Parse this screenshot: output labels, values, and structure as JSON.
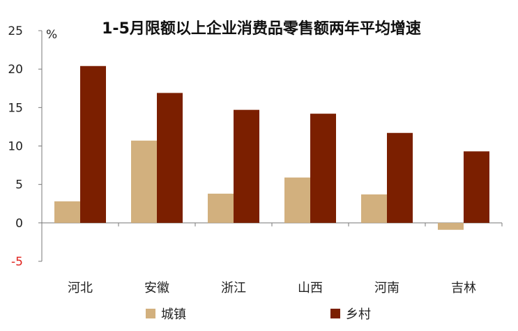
{
  "chart_data": {
    "type": "bar",
    "title": "1-5月限额以上企业消费品零售额两年平均增速",
    "ylabel": "%",
    "ylim": [
      -5,
      25
    ],
    "yticks": [
      25,
      20,
      15,
      10,
      5,
      0,
      -5
    ],
    "grid": false,
    "legend_position": "bottom",
    "categories": [
      "河北",
      "安徽",
      "浙江",
      "山西",
      "河南",
      "吉林"
    ],
    "series": [
      {
        "name": "城镇",
        "color": "#d2b07e",
        "values": [
          2.8,
          10.7,
          3.8,
          5.9,
          3.7,
          -0.9
        ]
      },
      {
        "name": "乡村",
        "color": "#7b1f00",
        "values": [
          20.4,
          16.9,
          14.7,
          14.2,
          11.7,
          9.3
        ]
      }
    ]
  }
}
